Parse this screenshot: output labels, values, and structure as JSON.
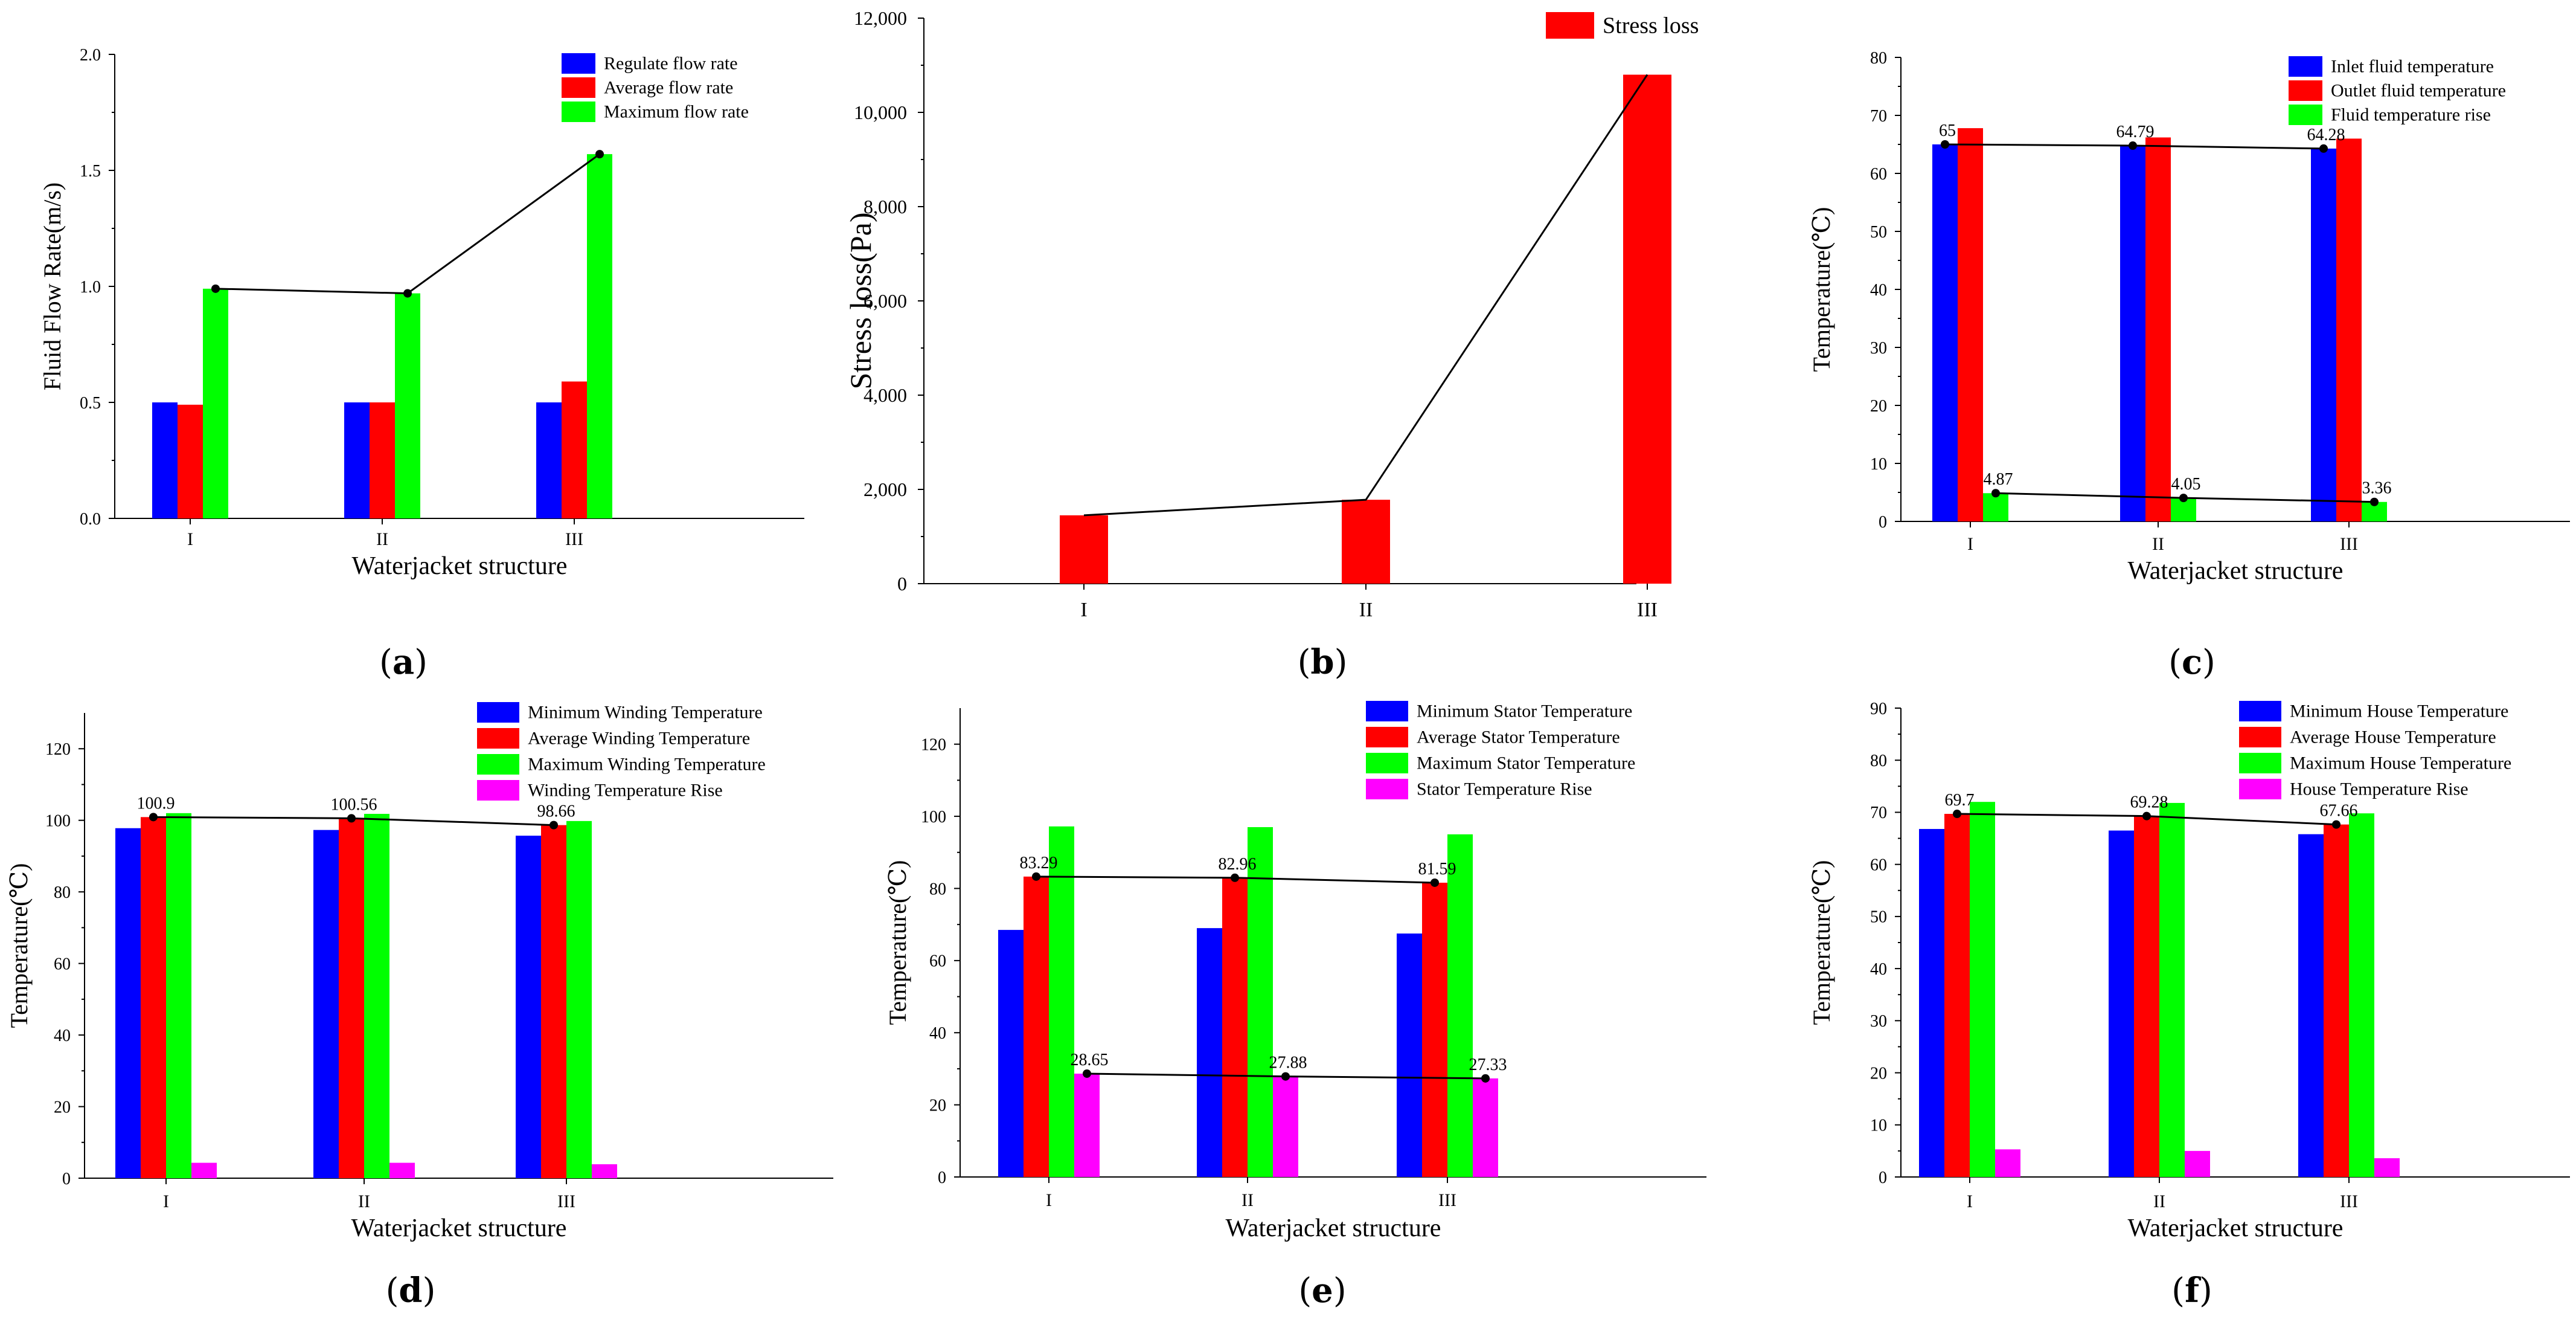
{
  "figure": {
    "captions": [
      "(a)",
      "(b)",
      "(c)",
      "(d)",
      "(e)",
      "(f)"
    ],
    "caption_letters": [
      "a",
      "b",
      "c",
      "d",
      "e",
      "f"
    ]
  },
  "colors": {
    "blue": "#0000ff",
    "red": "#ff0000",
    "green": "#00ff00",
    "magenta": "#ff00ff",
    "line": "#000000"
  },
  "chart_data": [
    {
      "id": "a",
      "type": "bar",
      "caption": "(a)",
      "categories": [
        "I",
        "II",
        "III"
      ],
      "xlabel": "Waterjacket structure",
      "ylabel": "Fluid Flow Rate(m/s)",
      "ylim": [
        0,
        2.0
      ],
      "yticks": [
        0.0,
        0.5,
        1.0,
        1.5,
        2.0
      ],
      "ytick_labels": [
        "0.0",
        "0.5",
        "1.0",
        "1.5",
        "2.0"
      ],
      "legend_position": "top-right",
      "series": [
        {
          "name": "Regulate flow rate",
          "color": "blue",
          "values": [
            0.5,
            0.5,
            0.5
          ]
        },
        {
          "name": "Average flow rate",
          "color": "red",
          "values": [
            0.49,
            0.5,
            0.59
          ]
        },
        {
          "name": "Maximum flow rate",
          "color": "green",
          "values": [
            0.99,
            0.97,
            1.57
          ]
        }
      ],
      "trend_lines": [
        {
          "series_index": 2,
          "values": [
            0.99,
            0.97,
            1.57
          ],
          "labels": []
        }
      ]
    },
    {
      "id": "b",
      "type": "bar",
      "caption": "(b)",
      "categories": [
        "I",
        "II",
        "III"
      ],
      "xlabel": "",
      "ylabel": "Stress loss(Pa)",
      "ylim": [
        0,
        12000
      ],
      "yticks": [
        0,
        2000,
        4000,
        6000,
        8000,
        10000,
        12000
      ],
      "ytick_labels": [
        "0",
        "2,000",
        "4,000",
        "6,000",
        "8,000",
        "10,000",
        "12,000"
      ],
      "legend_position": "top-right",
      "series": [
        {
          "name": "Stress loss",
          "color": "red",
          "values": [
            1450,
            1780,
            10800
          ]
        }
      ],
      "trend_lines": [
        {
          "series_index": 0,
          "values": [
            1450,
            1780,
            10800
          ],
          "labels": [],
          "markers": false
        }
      ]
    },
    {
      "id": "c",
      "type": "bar",
      "caption": "(c)",
      "categories": [
        "I",
        "II",
        "III"
      ],
      "xlabel": "Waterjacket structure",
      "ylabel": "Temperature(℃)",
      "ylim": [
        0,
        80
      ],
      "yticks": [
        0,
        10,
        20,
        30,
        40,
        50,
        60,
        70,
        80
      ],
      "ytick_labels": [
        "0",
        "10",
        "20",
        "30",
        "40",
        "50",
        "60",
        "70",
        "80"
      ],
      "legend_position": "top-right",
      "series": [
        {
          "name": "Inlet fluid temperature",
          "color": "blue",
          "values": [
            65,
            64.79,
            64.28
          ]
        },
        {
          "name": "Outlet fluid temperature",
          "color": "red",
          "values": [
            67.8,
            66.2,
            66.0
          ]
        },
        {
          "name": "Fluid temperature rise",
          "color": "green",
          "values": [
            4.87,
            4.05,
            3.36
          ]
        }
      ],
      "trend_lines": [
        {
          "series_index": 0,
          "values": [
            65,
            64.79,
            64.28
          ],
          "labels": [
            "65",
            "64.79",
            "64.28"
          ]
        },
        {
          "series_index": 2,
          "values": [
            4.87,
            4.05,
            3.36
          ],
          "labels": [
            "4.87",
            "4.05",
            "3.36"
          ]
        }
      ]
    },
    {
      "id": "d",
      "type": "bar",
      "caption": "(d)",
      "categories": [
        "I",
        "II",
        "III"
      ],
      "xlabel": "Waterjacket structure",
      "ylabel": "Temperature(℃)",
      "ylim": [
        0,
        130
      ],
      "yticks": [
        0,
        20,
        40,
        60,
        80,
        100,
        120
      ],
      "ytick_labels": [
        "0",
        "20",
        "40",
        "60",
        "80",
        "100",
        "120"
      ],
      "legend_position": "top-right",
      "series": [
        {
          "name": "Minimum Winding Temperature",
          "color": "blue",
          "values": [
            97.8,
            97.3,
            95.7
          ]
        },
        {
          "name": "Average Winding Temperature",
          "color": "red",
          "values": [
            100.9,
            100.56,
            98.66
          ]
        },
        {
          "name": "Maximum Winding Temperature",
          "color": "green",
          "values": [
            102.0,
            101.8,
            99.8
          ]
        },
        {
          "name": "Winding Temperature Rise",
          "color": "magenta",
          "values": [
            4.3,
            4.3,
            3.9
          ]
        }
      ],
      "trend_lines": [
        {
          "series_index": 1,
          "values": [
            100.9,
            100.56,
            98.66
          ],
          "labels": [
            "100.9",
            "100.56",
            "98.66"
          ]
        }
      ]
    },
    {
      "id": "e",
      "type": "bar",
      "caption": "(e)",
      "categories": [
        "I",
        "II",
        "III"
      ],
      "xlabel": "Waterjacket structure",
      "ylabel": "Temperature(℃)",
      "ylim": [
        0,
        130
      ],
      "yticks": [
        0,
        20,
        40,
        60,
        80,
        100,
        120
      ],
      "ytick_labels": [
        "0",
        "20",
        "40",
        "60",
        "80",
        "100",
        "120"
      ],
      "legend_position": "top-right",
      "series": [
        {
          "name": "Minimum Stator Temperature",
          "color": "blue",
          "values": [
            68.5,
            69.0,
            67.5
          ]
        },
        {
          "name": "Average Stator Temperature",
          "color": "red",
          "values": [
            83.29,
            82.96,
            81.59
          ]
        },
        {
          "name": "Maximum Stator Temperature",
          "color": "green",
          "values": [
            97.2,
            97.0,
            95.0
          ]
        },
        {
          "name": "Stator Temperature Rise",
          "color": "magenta",
          "values": [
            28.65,
            27.88,
            27.33
          ]
        }
      ],
      "trend_lines": [
        {
          "series_index": 1,
          "values": [
            83.29,
            82.96,
            81.59
          ],
          "labels": [
            "83.29",
            "82.96",
            "81.59"
          ]
        },
        {
          "series_index": 3,
          "values": [
            28.65,
            27.88,
            27.33
          ],
          "labels": [
            "28.65",
            "27.88",
            "27.33"
          ]
        }
      ]
    },
    {
      "id": "f",
      "type": "bar",
      "caption": "(f)",
      "categories": [
        "I",
        "II",
        "III"
      ],
      "xlabel": "Waterjacket structure",
      "ylabel": "Temperature(℃)",
      "ylim": [
        0,
        90
      ],
      "yticks": [
        0,
        10,
        20,
        30,
        40,
        50,
        60,
        70,
        80,
        90
      ],
      "ytick_labels": [
        "0",
        "10",
        "20",
        "30",
        "40",
        "50",
        "60",
        "70",
        "80",
        "90"
      ],
      "legend_position": "top-right",
      "series": [
        {
          "name": "Minimum House Temperature",
          "color": "blue",
          "values": [
            66.8,
            66.5,
            65.8
          ]
        },
        {
          "name": "Average House Temperature",
          "color": "red",
          "values": [
            69.7,
            69.28,
            67.66
          ]
        },
        {
          "name": "Maximum House Temperature",
          "color": "green",
          "values": [
            72.0,
            71.8,
            69.8
          ]
        },
        {
          "name": "House Temperature Rise",
          "color": "magenta",
          "values": [
            5.3,
            5.0,
            3.6
          ]
        }
      ],
      "trend_lines": [
        {
          "series_index": 1,
          "values": [
            69.7,
            69.28,
            67.66
          ],
          "labels": [
            "69.7",
            "69.28",
            "67.66"
          ]
        }
      ]
    }
  ]
}
